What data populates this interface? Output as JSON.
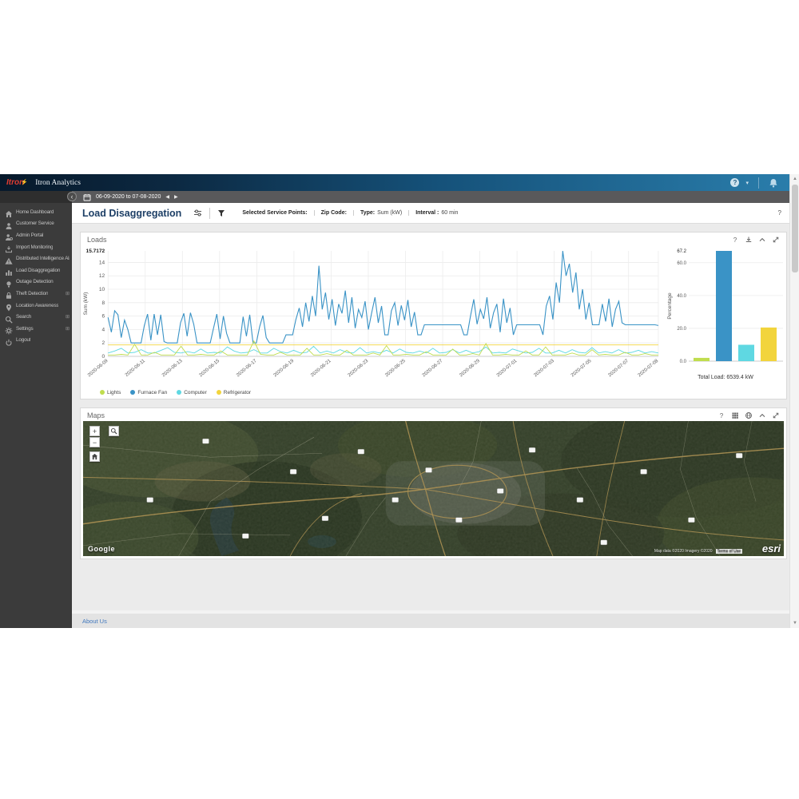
{
  "topbar": {
    "logo": "Itron",
    "brand": "Itron Analytics",
    "help": "?",
    "caret": "▾"
  },
  "datebar": {
    "range": "06-09-2020 to 07-08-2020",
    "prev": "◀",
    "next": "▶",
    "collapse": "‹"
  },
  "sidebar": {
    "items": [
      {
        "label": "Home Dashboard",
        "icon": "home-icon",
        "expandable": false
      },
      {
        "label": "Customer Service",
        "icon": "user-icon",
        "expandable": false
      },
      {
        "label": "Admin Portal",
        "icon": "user-gear-icon",
        "expandable": false
      },
      {
        "label": "Import Monitoring",
        "icon": "import-icon",
        "expandable": false
      },
      {
        "label": "Distributed Intelligence Alarms",
        "icon": "warning-icon",
        "expandable": false
      },
      {
        "label": "Load Disaggregation",
        "icon": "load-chart-icon",
        "expandable": false
      },
      {
        "label": "Outage Detection",
        "icon": "bulb-icon",
        "expandable": false
      },
      {
        "label": "Theft Detection",
        "icon": "lock-icon",
        "expandable": true
      },
      {
        "label": "Location Awareness",
        "icon": "location-icon",
        "expandable": false
      },
      {
        "label": "Search",
        "icon": "search-icon",
        "expandable": true
      },
      {
        "label": "Settings",
        "icon": "gear-icon",
        "expandable": true
      },
      {
        "label": "Logout",
        "icon": "power-icon",
        "expandable": false
      }
    ],
    "expander_glyph": "⊞"
  },
  "page": {
    "title": "Load Disaggregation",
    "help": "?",
    "filters": [
      {
        "label": "Selected Service Points:",
        "value": ""
      },
      {
        "label": "Zip Code:",
        "value": ""
      },
      {
        "label": "Type:",
        "value": "Sum (kW)"
      },
      {
        "label": "Interval :",
        "value": "60 min"
      }
    ]
  },
  "loads_panel": {
    "title": "Loads",
    "icons": [
      "help-icon",
      "download-icon",
      "collapse-icon",
      "expand-icon"
    ],
    "legend": [
      {
        "label": "Lights",
        "color": "#c0dd4e"
      },
      {
        "label": "Furnace Fan",
        "color": "#3a93c6"
      },
      {
        "label": "Computer",
        "color": "#5fd8e2"
      },
      {
        "label": "Refrigerator",
        "color": "#f2d43c"
      }
    ]
  },
  "maps_panel": {
    "title": "Maps",
    "icons": [
      "help-icon",
      "basemap-icon",
      "globe-icon",
      "collapse-icon",
      "expand-icon"
    ],
    "google": "Google",
    "attribution": "Map data ©2020 Imagery ©2020",
    "terms": "Terms of Use",
    "esri": "esri",
    "controls": {
      "zoom_in": "+",
      "zoom_out": "−"
    }
  },
  "footer": {
    "about": "About Us"
  },
  "chart_data": [
    {
      "type": "line",
      "title": "Loads",
      "ylabel": "Sum (kW)",
      "ymax": 15.7172,
      "ymax_label": "15.7172",
      "yticks": [
        0,
        2,
        4,
        6,
        8,
        10,
        12,
        14
      ],
      "xtick_labels": [
        "2020-06-09",
        "2020-06-11",
        "2020-06-13",
        "2020-06-15",
        "2020-06-17",
        "2020-06-19",
        "2020-06-21",
        "2020-06-23",
        "2020-06-25",
        "2020-06-27",
        "2020-06-29",
        "2020-07-01",
        "2020-07-03",
        "2020-07-05",
        "2020-07-07",
        "2020-07-08"
      ],
      "legend_position": "bottom",
      "grid": true,
      "series": [
        {
          "name": "Furnace Fan",
          "color": "#3a93c6",
          "values": [
            5.8,
            3.6,
            6.8,
            6.2,
            2.8,
            5.4,
            4.0,
            2.0,
            2.0,
            2.0,
            2.0,
            4.6,
            6.3,
            2.4,
            6.3,
            3.2,
            6.2,
            2.2,
            2.0,
            2.0,
            2.0,
            2.0,
            5.0,
            6.4,
            3.0,
            6.5,
            4.8,
            2.0,
            2.0,
            2.0,
            2.0,
            2.0,
            4.2,
            6.3,
            2.6,
            6.0,
            3.4,
            2.0,
            2.0,
            2.0,
            2.0,
            5.9,
            3.0,
            6.2,
            2.0,
            2.0,
            4.4,
            6.1,
            2.8,
            2.0,
            2.0,
            2.0,
            2.0,
            2.0,
            3.2,
            3.2,
            3.2,
            5.5,
            7.2,
            4.4,
            8.0,
            5.2,
            9.0,
            6.0,
            13.5,
            7.0,
            9.5,
            5.5,
            8.5,
            4.6,
            7.8,
            6.4,
            9.8,
            5.0,
            8.8,
            4.2,
            7.0,
            5.8,
            8.2,
            4.0,
            6.5,
            8.8,
            5.0,
            7.5,
            3.2,
            3.2,
            6.8,
            8.0,
            4.6,
            7.6,
            5.4,
            8.4,
            4.4,
            6.6,
            3.2,
            3.2,
            4.7,
            4.7,
            4.7,
            4.7,
            4.7,
            4.7,
            4.7,
            4.7,
            4.7,
            4.7,
            4.7,
            4.7,
            3.2,
            3.2,
            6.0,
            8.5,
            4.8,
            7.0,
            5.6,
            8.8,
            4.2,
            6.5,
            7.8,
            3.6,
            8.6,
            5.0,
            7.2,
            3.2,
            4.7,
            4.7,
            4.7,
            4.7,
            4.7,
            4.7,
            4.7,
            4.7,
            3.2,
            7.5,
            9.0,
            5.5,
            11.0,
            8.0,
            15.7,
            12.0,
            13.8,
            9.5,
            12.5,
            7.0,
            10.0,
            5.5,
            8.0,
            4.7,
            4.7,
            4.7,
            7.8,
            5.2,
            8.6,
            4.4,
            7.0,
            8.2,
            5.0,
            4.7,
            4.7,
            4.7,
            4.7,
            4.7,
            4.7,
            4.7,
            4.7,
            4.7,
            4.7,
            4.6
          ]
        },
        {
          "name": "Refrigerator",
          "color": "#f2d43c",
          "values": [
            1.7,
            1.7,
            1.7,
            1.7,
            1.7,
            1.7,
            1.7,
            1.7,
            1.7,
            1.7,
            1.7,
            1.7,
            1.7,
            1.7,
            1.7,
            1.7,
            1.7,
            1.7,
            1.7,
            1.7,
            1.7,
            1.7,
            1.7,
            1.7
          ]
        },
        {
          "name": "Computer",
          "color": "#5fd8e2",
          "values": [
            0.5,
            0.8,
            1.2,
            0.5,
            0.6,
            1.0,
            0.5,
            0.5,
            0.9,
            1.3,
            0.6,
            0.5,
            0.7,
            0.5,
            1.1,
            0.5,
            0.6,
            0.5,
            1.4,
            0.8,
            0.5,
            0.6,
            1.0,
            0.5,
            0.5,
            1.2,
            0.7,
            0.5,
            0.9,
            0.5,
            0.6,
            1.5,
            0.5,
            0.8,
            0.5,
            1.0,
            0.6,
            0.5,
            1.3,
            0.5,
            0.7,
            0.5,
            0.9,
            0.5,
            1.1,
            0.6,
            0.5,
            0.8,
            0.5,
            1.2,
            0.5,
            0.6,
            1.0,
            0.5,
            0.9,
            0.5,
            0.7,
            1.4,
            0.5,
            0.6,
            0.5,
            1.1,
            0.8,
            0.5,
            0.6,
            1.2,
            0.5,
            0.5,
            0.9,
            0.5,
            1.0,
            0.6,
            0.5,
            1.3,
            0.5,
            0.7,
            0.5,
            1.0,
            0.5,
            0.6,
            0.9,
            0.5,
            0.7,
            0.5
          ]
        },
        {
          "name": "Lights",
          "color": "#c0dd4e",
          "values": [
            0.2,
            0.2,
            0.3,
            0.2,
            1.8,
            0.2,
            0.2,
            0.6,
            0.2,
            0.2,
            0.2,
            1.5,
            0.2,
            0.2,
            0.3,
            0.2,
            0.2,
            0.8,
            0.2,
            0.2,
            0.2,
            0.2,
            2.3,
            0.3,
            0.2,
            0.2,
            0.6,
            0.2,
            0.2,
            0.2,
            1.2,
            0.2,
            0.2,
            0.4,
            0.2,
            0.2,
            0.9,
            0.2,
            0.2,
            0.2,
            0.5,
            0.2,
            1.6,
            0.2,
            0.2,
            0.3,
            0.2,
            0.2,
            0.7,
            0.2,
            0.2,
            0.2,
            1.1,
            0.2,
            0.2,
            0.4,
            0.2,
            1.9,
            0.2,
            0.2,
            0.3,
            0.2,
            0.2,
            0.8,
            0.2,
            0.2,
            1.4,
            0.2,
            0.2,
            0.2,
            0.5,
            0.2,
            0.2,
            1.0,
            0.2,
            0.3,
            0.2,
            0.2,
            0.6,
            0.2,
            0.2,
            0.4,
            0.2,
            0.2
          ]
        }
      ]
    },
    {
      "type": "bar",
      "ylabel": "Percentage",
      "categories": [
        "Lights",
        "Furnace Fan",
        "Computer",
        "Refrigerator"
      ],
      "values": [
        2.0,
        67.2,
        10.0,
        20.5
      ],
      "colors": [
        "#c0dd4e",
        "#3a93c6",
        "#5fd8e2",
        "#f2d43c"
      ],
      "yticks": [
        0.0,
        20.0,
        40.0,
        60.0
      ],
      "ymax": 67.2,
      "ymax_label": "67.2",
      "ylim": [
        0,
        67.2
      ],
      "grid": true,
      "caption": "Total Load: 6539.4 kW"
    }
  ]
}
